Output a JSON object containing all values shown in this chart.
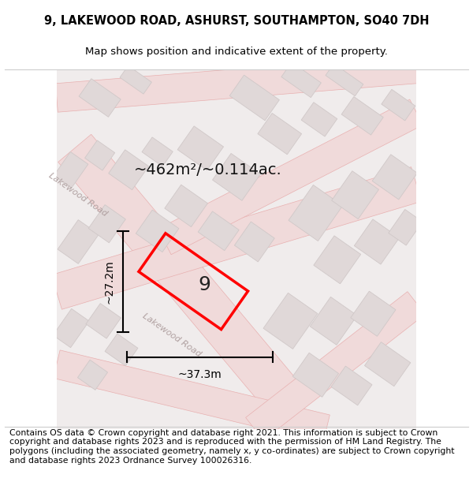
{
  "title_line1": "9, LAKEWOOD ROAD, ASHURST, SOUTHAMPTON, SO40 7DH",
  "title_line2": "Map shows position and indicative extent of the property.",
  "area_label": "~462m²/~0.114ac.",
  "property_number": "9",
  "dim_width": "~37.3m",
  "dim_height": "~27.2m",
  "road_label": "Lakewood Road",
  "footer_text": "Contains OS data © Crown copyright and database right 2021. This information is subject to Crown copyright and database rights 2023 and is reproduced with the permission of HM Land Registry. The polygons (including the associated geometry, namely x, y co-ordinates) are subject to Crown copyright and database rights 2023 Ordnance Survey 100026316.",
  "bg_color": "#f5f0f0",
  "map_bg": "#f0ecec",
  "block_color": "#e0d8d8",
  "block_edge": "#d0c8c8",
  "road_line_color": "#e8b0b0",
  "road_fill_color": "#f5eeee",
  "property_color": "#ff0000",
  "property_fill": "none",
  "dim_color": "#000000",
  "title_fontsize": 10.5,
  "subtitle_fontsize": 9.5,
  "footer_fontsize": 7.8
}
